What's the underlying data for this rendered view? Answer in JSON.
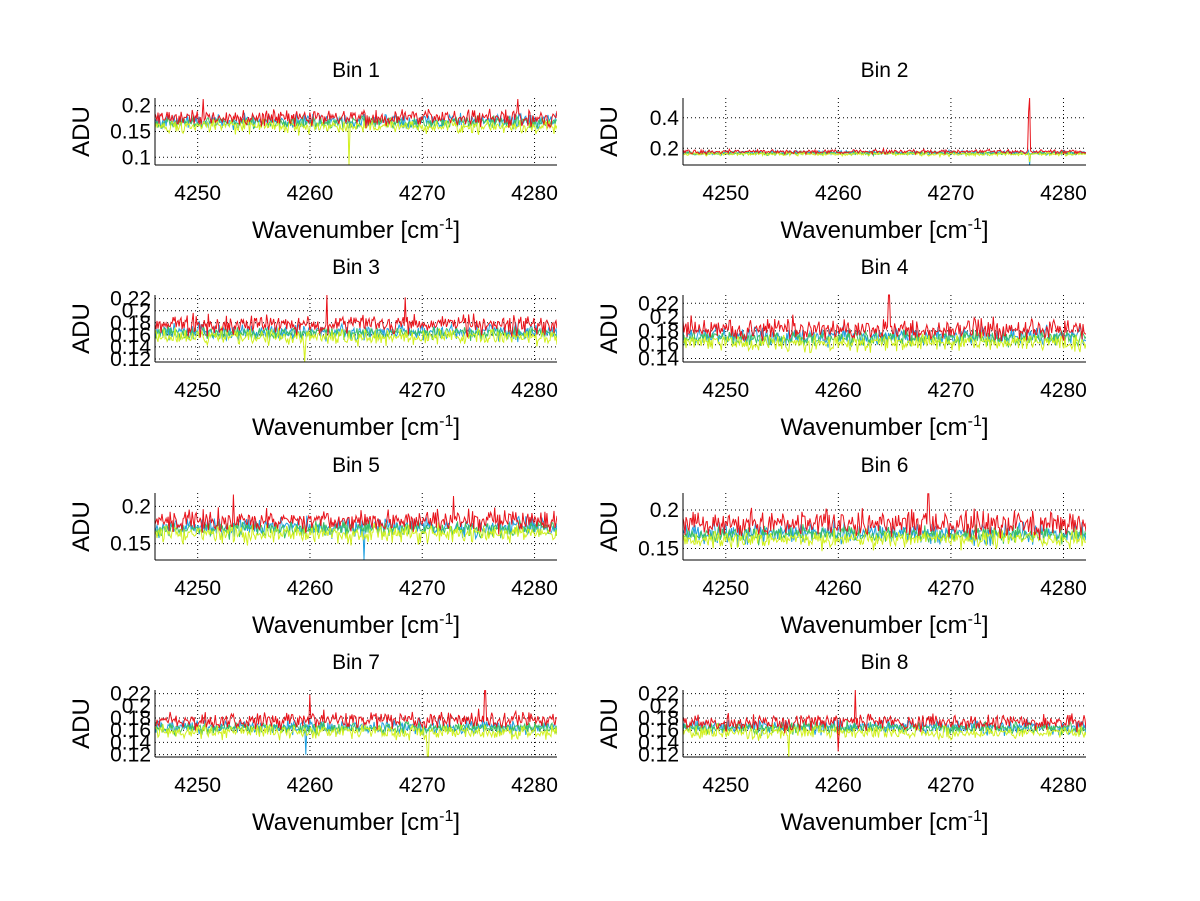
{
  "figure": {
    "panels_layout": "4 rows x 2 columns"
  },
  "chart_data": [
    {
      "type": "line",
      "title": "Bin 1",
      "xlabel": "Wavenumber [cm-1]",
      "ylabel": "ADU",
      "xlim": [
        4246.2,
        4282.0
      ],
      "ylim": [
        0.085,
        0.215
      ],
      "xticks": [
        4250,
        4260,
        4270,
        4280
      ],
      "yticks": [
        0.1,
        0.15,
        0.2
      ],
      "ytick_labels": [
        "0.1",
        "0.15",
        "0.2"
      ],
      "grid": true,
      "series": [
        {
          "name": "trace-blue",
          "color": "#1fa0e0",
          "mean": 0.17,
          "noise": 0.012,
          "spikes": []
        },
        {
          "name": "trace-green",
          "color": "#3cc060",
          "mean": 0.168,
          "noise": 0.01,
          "spikes": []
        },
        {
          "name": "trace-yellow",
          "color": "#d2f020",
          "mean": 0.16,
          "noise": 0.011,
          "spikes": [
            {
              "x": 4263.5,
              "y": 0.085
            }
          ]
        },
        {
          "name": "trace-red",
          "color": "#e8141c",
          "mean": 0.177,
          "noise": 0.014,
          "spikes": [
            {
              "x": 4250.5,
              "y": 0.213
            },
            {
              "x": 4278.5,
              "y": 0.213
            }
          ]
        }
      ]
    },
    {
      "type": "line",
      "title": "Bin 2",
      "xlabel": "Wavenumber [cm-1]",
      "ylabel": "ADU",
      "xlim": [
        4246.2,
        4282.0
      ],
      "ylim": [
        0.09,
        0.53
      ],
      "xticks": [
        4250,
        4260,
        4270,
        4280
      ],
      "yticks": [
        0.2,
        0.4
      ],
      "ytick_labels": [
        "0.2",
        "0.4"
      ],
      "grid": true,
      "series": [
        {
          "name": "trace-blue",
          "color": "#1fa0e0",
          "mean": 0.17,
          "noise": 0.012,
          "spikes": [
            {
              "x": 4277.0,
              "y": 0.09
            }
          ]
        },
        {
          "name": "trace-green",
          "color": "#3cc060",
          "mean": 0.168,
          "noise": 0.01,
          "spikes": []
        },
        {
          "name": "trace-yellow",
          "color": "#d2f020",
          "mean": 0.162,
          "noise": 0.011,
          "spikes": [
            {
              "x": 4277.0,
              "y": 0.11
            }
          ]
        },
        {
          "name": "trace-red",
          "color": "#e8141c",
          "mean": 0.178,
          "noise": 0.012,
          "spikes": [
            {
              "x": 4276.9,
              "y": 0.44
            },
            {
              "x": 4277.0,
              "y": 0.53
            }
          ]
        }
      ]
    },
    {
      "type": "line",
      "title": "Bin 3",
      "xlabel": "Wavenumber [cm-1]",
      "ylabel": "ADU",
      "xlim": [
        4246.2,
        4282.0
      ],
      "ylim": [
        0.115,
        0.226
      ],
      "xticks": [
        4250,
        4260,
        4270,
        4280
      ],
      "yticks": [
        0.12,
        0.14,
        0.16,
        0.18,
        0.2,
        0.22
      ],
      "ytick_labels": [
        "0.12",
        "0.14",
        "0.16",
        "0.18",
        "0.2",
        "0.22"
      ],
      "grid": true,
      "series": [
        {
          "name": "trace-blue",
          "color": "#1fa0e0",
          "mean": 0.165,
          "noise": 0.011,
          "spikes": []
        },
        {
          "name": "trace-green",
          "color": "#3cc060",
          "mean": 0.163,
          "noise": 0.009,
          "spikes": []
        },
        {
          "name": "trace-yellow",
          "color": "#d2f020",
          "mean": 0.157,
          "noise": 0.011,
          "spikes": [
            {
              "x": 4259.5,
              "y": 0.115
            }
          ]
        },
        {
          "name": "trace-red",
          "color": "#e8141c",
          "mean": 0.177,
          "noise": 0.014,
          "spikes": [
            {
              "x": 4261.5,
              "y": 0.226
            },
            {
              "x": 4268.5,
              "y": 0.222
            }
          ]
        }
      ]
    },
    {
      "type": "line",
      "title": "Bin 4",
      "xlabel": "Wavenumber [cm-1]",
      "ylabel": "ADU",
      "xlim": [
        4246.2,
        4282.0
      ],
      "ylim": [
        0.135,
        0.232
      ],
      "xticks": [
        4250,
        4260,
        4270,
        4280
      ],
      "yticks": [
        0.14,
        0.16,
        0.18,
        0.2,
        0.22
      ],
      "ytick_labels": [
        "0.14",
        "0.16",
        "0.18",
        "0.2",
        "0.22"
      ],
      "grid": true,
      "series": [
        {
          "name": "trace-blue",
          "color": "#1fa0e0",
          "mean": 0.172,
          "noise": 0.011,
          "spikes": []
        },
        {
          "name": "trace-green",
          "color": "#3cc060",
          "mean": 0.17,
          "noise": 0.009,
          "spikes": []
        },
        {
          "name": "trace-yellow",
          "color": "#d2f020",
          "mean": 0.163,
          "noise": 0.01,
          "spikes": []
        },
        {
          "name": "trace-red",
          "color": "#e8141c",
          "mean": 0.182,
          "noise": 0.013,
          "spikes": [
            {
              "x": 4264.5,
              "y": 0.232
            }
          ]
        }
      ]
    },
    {
      "type": "line",
      "title": "Bin 5",
      "xlabel": "Wavenumber [cm-1]",
      "ylabel": "ADU",
      "xlim": [
        4246.2,
        4282.0
      ],
      "ylim": [
        0.128,
        0.218
      ],
      "xticks": [
        4250,
        4260,
        4270,
        4280
      ],
      "yticks": [
        0.15,
        0.2
      ],
      "ytick_labels": [
        "0.15",
        "0.2"
      ],
      "grid": true,
      "series": [
        {
          "name": "trace-blue",
          "color": "#1fa0e0",
          "mean": 0.172,
          "noise": 0.011,
          "spikes": [
            {
              "x": 4264.8,
              "y": 0.128
            }
          ]
        },
        {
          "name": "trace-green",
          "color": "#3cc060",
          "mean": 0.17,
          "noise": 0.009,
          "spikes": []
        },
        {
          "name": "trace-yellow",
          "color": "#d2f020",
          "mean": 0.163,
          "noise": 0.01,
          "spikes": []
        },
        {
          "name": "trace-red",
          "color": "#e8141c",
          "mean": 0.181,
          "noise": 0.012,
          "spikes": [
            {
              "x": 4253.2,
              "y": 0.216
            },
            {
              "x": 4272.8,
              "y": 0.214
            }
          ]
        }
      ]
    },
    {
      "type": "line",
      "title": "Bin 6",
      "xlabel": "Wavenumber [cm-1]",
      "ylabel": "ADU",
      "xlim": [
        4246.2,
        4282.0
      ],
      "ylim": [
        0.135,
        0.222
      ],
      "xticks": [
        4250,
        4260,
        4270,
        4280
      ],
      "yticks": [
        0.15,
        0.2
      ],
      "ytick_labels": [
        "0.15",
        "0.2"
      ],
      "grid": true,
      "series": [
        {
          "name": "trace-blue",
          "color": "#1fa0e0",
          "mean": 0.17,
          "noise": 0.012,
          "spikes": []
        },
        {
          "name": "trace-green",
          "color": "#3cc060",
          "mean": 0.168,
          "noise": 0.009,
          "spikes": []
        },
        {
          "name": "trace-yellow",
          "color": "#d2f020",
          "mean": 0.162,
          "noise": 0.01,
          "spikes": []
        },
        {
          "name": "trace-red",
          "color": "#e8141c",
          "mean": 0.182,
          "noise": 0.014,
          "spikes": [
            {
              "x": 4268.0,
              "y": 0.221
            }
          ]
        }
      ]
    },
    {
      "type": "line",
      "title": "Bin 7",
      "xlabel": "Wavenumber [cm-1]",
      "ylabel": "ADU",
      "xlim": [
        4246.2,
        4282.0
      ],
      "ylim": [
        0.116,
        0.226
      ],
      "xticks": [
        4250,
        4260,
        4270,
        4280
      ],
      "yticks": [
        0.12,
        0.14,
        0.16,
        0.18,
        0.2,
        0.22
      ],
      "ytick_labels": [
        "0.12",
        "0.14",
        "0.16",
        "0.18",
        "0.2",
        "0.22"
      ],
      "grid": true,
      "series": [
        {
          "name": "trace-blue",
          "color": "#1fa0e0",
          "mean": 0.165,
          "noise": 0.01,
          "spikes": [
            {
              "x": 4259.6,
              "y": 0.12
            }
          ]
        },
        {
          "name": "trace-green",
          "color": "#3cc060",
          "mean": 0.164,
          "noise": 0.008,
          "spikes": []
        },
        {
          "name": "trace-yellow",
          "color": "#d2f020",
          "mean": 0.157,
          "noise": 0.01,
          "spikes": [
            {
              "x": 4270.5,
              "y": 0.116
            }
          ]
        },
        {
          "name": "trace-red",
          "color": "#e8141c",
          "mean": 0.177,
          "noise": 0.012,
          "spikes": [
            {
              "x": 4275.6,
              "y": 0.225
            },
            {
              "x": 4260.0,
              "y": 0.218
            }
          ]
        }
      ]
    },
    {
      "type": "line",
      "title": "Bin 8",
      "xlabel": "Wavenumber [cm-1]",
      "ylabel": "ADU",
      "xlim": [
        4246.2,
        4282.0
      ],
      "ylim": [
        0.116,
        0.226
      ],
      "xticks": [
        4250,
        4260,
        4270,
        4280
      ],
      "yticks": [
        0.12,
        0.14,
        0.16,
        0.18,
        0.2,
        0.22
      ],
      "ytick_labels": [
        "0.12",
        "0.14",
        "0.16",
        "0.18",
        "0.2",
        "0.22"
      ],
      "grid": true,
      "series": [
        {
          "name": "trace-blue",
          "color": "#1fa0e0",
          "mean": 0.165,
          "noise": 0.01,
          "spikes": []
        },
        {
          "name": "trace-green",
          "color": "#3cc060",
          "mean": 0.164,
          "noise": 0.008,
          "spikes": []
        },
        {
          "name": "trace-yellow",
          "color": "#d2f020",
          "mean": 0.157,
          "noise": 0.01,
          "spikes": [
            {
              "x": 4255.6,
              "y": 0.116
            }
          ]
        },
        {
          "name": "trace-red",
          "color": "#e8141c",
          "mean": 0.173,
          "noise": 0.011,
          "spikes": [
            {
              "x": 4261.5,
              "y": 0.226
            },
            {
              "x": 4260.0,
              "y": 0.125
            }
          ]
        }
      ]
    }
  ]
}
